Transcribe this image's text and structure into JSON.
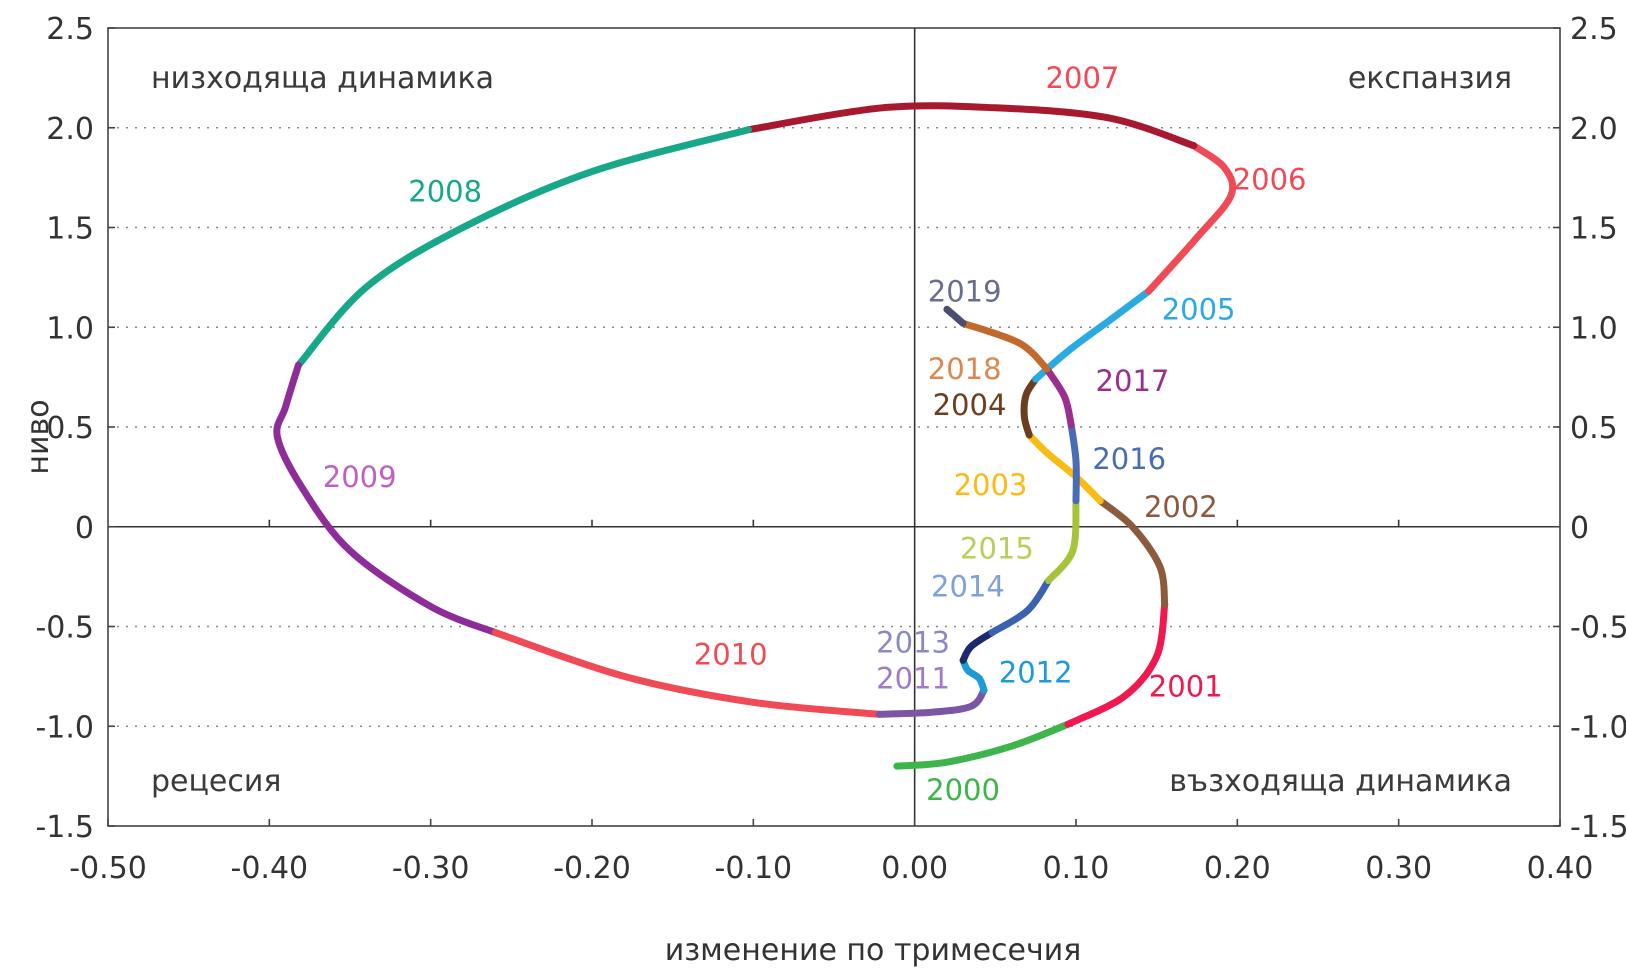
{
  "chart_data": {
    "type": "line",
    "title": "",
    "xlabel": "изменение по тримесечия",
    "ylabel": "ниво",
    "xlim": [
      -0.5,
      0.4
    ],
    "ylim": [
      -1.5,
      2.5
    ],
    "grid": "horizontal dotted",
    "x_ticks": [
      "-0.50",
      "-0.40",
      "-0.30",
      "-0.20",
      "-0.10",
      "0.00",
      "0.10",
      "0.20",
      "0.30",
      "0.40"
    ],
    "y_ticks": [
      "2.5",
      "2.0",
      "1.5",
      "1.0",
      "0.5",
      "0",
      "-0.5",
      "-1.0",
      "-1.5"
    ],
    "quadrant_labels": {
      "top_left": "низходяща динамика",
      "top_right": "експанзия",
      "bottom_left": "рецесия",
      "bottom_right": "възходяща динамика"
    },
    "series": [
      {
        "name": "2000",
        "color": "#3DB54A",
        "points": [
          [
            -0.011,
            -1.2
          ],
          [
            0.02,
            -1.18
          ],
          [
            0.06,
            -1.1
          ],
          [
            0.095,
            -0.99
          ]
        ]
      },
      {
        "name": "2001",
        "color": "#F0184F",
        "points": [
          [
            0.095,
            -0.99
          ],
          [
            0.13,
            -0.85
          ],
          [
            0.15,
            -0.65
          ],
          [
            0.155,
            -0.39
          ]
        ]
      },
      {
        "name": "2002",
        "color": "#8C5A3C",
        "points": [
          [
            0.155,
            -0.39
          ],
          [
            0.152,
            -0.2
          ],
          [
            0.135,
            0.0
          ],
          [
            0.115,
            0.13
          ]
        ]
      },
      {
        "name": "2003",
        "color": "#FBBA14",
        "points": [
          [
            0.115,
            0.13
          ],
          [
            0.1,
            0.25
          ],
          [
            0.082,
            0.37
          ],
          [
            0.071,
            0.46
          ]
        ]
      },
      {
        "name": "2004",
        "color": "#6B3E1F",
        "points": [
          [
            0.071,
            0.46
          ],
          [
            0.068,
            0.55
          ],
          [
            0.069,
            0.66
          ],
          [
            0.075,
            0.74
          ]
        ]
      },
      {
        "name": "2005",
        "color": "#2BAAE2",
        "points": [
          [
            0.075,
            0.74
          ],
          [
            0.095,
            0.88
          ],
          [
            0.12,
            1.03
          ],
          [
            0.145,
            1.18
          ]
        ]
      },
      {
        "name": "2006",
        "color": "#F04A56",
        "points": [
          [
            0.145,
            1.18
          ],
          [
            0.175,
            1.45
          ],
          [
            0.196,
            1.66
          ],
          [
            0.192,
            1.8
          ],
          [
            0.173,
            1.91
          ]
        ]
      },
      {
        "name": "2007",
        "color": "#A6192E",
        "points": [
          [
            0.173,
            1.91
          ],
          [
            0.12,
            2.05
          ],
          [
            0.05,
            2.1
          ],
          [
            -0.02,
            2.1
          ],
          [
            -0.103,
            1.99
          ]
        ]
      },
      {
        "name": "2008",
        "color": "#17A88A",
        "points": [
          [
            -0.103,
            1.99
          ],
          [
            -0.2,
            1.78
          ],
          [
            -0.28,
            1.5
          ],
          [
            -0.34,
            1.2
          ],
          [
            -0.382,
            0.81
          ]
        ]
      },
      {
        "name": "2009",
        "color": "#8E2D9A",
        "points": [
          [
            -0.382,
            0.81
          ],
          [
            -0.39,
            0.6
          ],
          [
            -0.395,
            0.45
          ],
          [
            -0.38,
            0.2
          ],
          [
            -0.35,
            -0.12
          ],
          [
            -0.3,
            -0.4
          ],
          [
            -0.26,
            -0.53
          ]
        ]
      },
      {
        "name": "2010",
        "color": "#F04A56",
        "points": [
          [
            -0.26,
            -0.53
          ],
          [
            -0.18,
            -0.75
          ],
          [
            -0.1,
            -0.88
          ],
          [
            -0.022,
            -0.94
          ]
        ]
      },
      {
        "name": "2011",
        "color": "#7B55A6",
        "points": [
          [
            -0.022,
            -0.94
          ],
          [
            0.01,
            -0.93
          ],
          [
            0.035,
            -0.9
          ],
          [
            0.043,
            -0.82
          ]
        ]
      },
      {
        "name": "2012",
        "color": "#1E9BD7",
        "points": [
          [
            0.043,
            -0.82
          ],
          [
            0.04,
            -0.76
          ],
          [
            0.033,
            -0.72
          ],
          [
            0.03,
            -0.67
          ]
        ]
      },
      {
        "name": "2013",
        "color": "#1A2A6C",
        "points": [
          [
            0.03,
            -0.67
          ],
          [
            0.035,
            -0.6
          ],
          [
            0.048,
            -0.53
          ]
        ]
      },
      {
        "name": "2014",
        "color": "#3B62B0",
        "points": [
          [
            0.048,
            -0.53
          ],
          [
            0.07,
            -0.42
          ],
          [
            0.083,
            -0.27
          ]
        ]
      },
      {
        "name": "2015",
        "color": "#A7C33C",
        "points": [
          [
            0.083,
            -0.27
          ],
          [
            0.098,
            -0.12
          ],
          [
            0.1,
            0.13
          ]
        ]
      },
      {
        "name": "2016",
        "color": "#4A6CB5",
        "points": [
          [
            0.1,
            0.13
          ],
          [
            0.1,
            0.33
          ],
          [
            0.097,
            0.51
          ]
        ]
      },
      {
        "name": "2017",
        "color": "#9B2E8E",
        "points": [
          [
            0.097,
            0.51
          ],
          [
            0.093,
            0.65
          ],
          [
            0.082,
            0.79
          ]
        ]
      },
      {
        "name": "2018",
        "color": "#C26A2E",
        "points": [
          [
            0.082,
            0.79
          ],
          [
            0.065,
            0.92
          ],
          [
            0.03,
            1.02
          ]
        ]
      },
      {
        "name": "2019",
        "color": "#4A4E6E",
        "points": [
          [
            0.03,
            1.02
          ],
          [
            0.02,
            1.09
          ]
        ]
      }
    ],
    "point_labels": [
      {
        "text": "2000",
        "color": "#3DB54A",
        "x": 0.03,
        "y": -1.32
      },
      {
        "text": "2001",
        "color": "#F0184F",
        "x": 0.168,
        "y": -0.8
      },
      {
        "text": "2002",
        "color": "#8C5A3C",
        "x": 0.165,
        "y": 0.1
      },
      {
        "text": "2003",
        "color": "#FBBA14",
        "x": 0.047,
        "y": 0.21
      },
      {
        "text": "2004",
        "color": "#6B3E1F",
        "x": 0.034,
        "y": 0.61
      },
      {
        "text": "2005",
        "color": "#2BAAE2",
        "x": 0.176,
        "y": 1.09
      },
      {
        "text": "2006",
        "color": "#F04A56",
        "x": 0.22,
        "y": 1.74
      },
      {
        "text": "2007",
        "color": "#F04A56",
        "x": 0.104,
        "y": 2.25
      },
      {
        "text": "2008",
        "color": "#17A88A",
        "x": -0.291,
        "y": 1.68
      },
      {
        "text": "2009",
        "color": "#C060C0",
        "x": -0.344,
        "y": 0.25
      },
      {
        "text": "2010",
        "color": "#F04A56",
        "x": -0.114,
        "y": -0.64
      },
      {
        "text": "2011",
        "color": "#9F7CC4",
        "x": -0.001,
        "y": -0.76
      },
      {
        "text": "2012",
        "color": "#1E9BD7",
        "x": 0.075,
        "y": -0.73
      },
      {
        "text": "2013",
        "color": "#8A8ABF",
        "x": -0.001,
        "y": -0.58
      },
      {
        "text": "2014",
        "color": "#7FA0D8",
        "x": 0.033,
        "y": -0.3
      },
      {
        "text": "2015",
        "color": "#B8CF5A",
        "x": 0.051,
        "y": -0.11
      },
      {
        "text": "2016",
        "color": "#4A6CB5",
        "x": 0.133,
        "y": 0.34
      },
      {
        "text": "2017",
        "color": "#9B2E8E",
        "x": 0.135,
        "y": 0.73
      },
      {
        "text": "2018",
        "color": "#D9884F",
        "x": 0.031,
        "y": 0.79
      },
      {
        "text": "2019",
        "color": "#6A6E8E",
        "x": 0.031,
        "y": 1.18
      }
    ]
  }
}
